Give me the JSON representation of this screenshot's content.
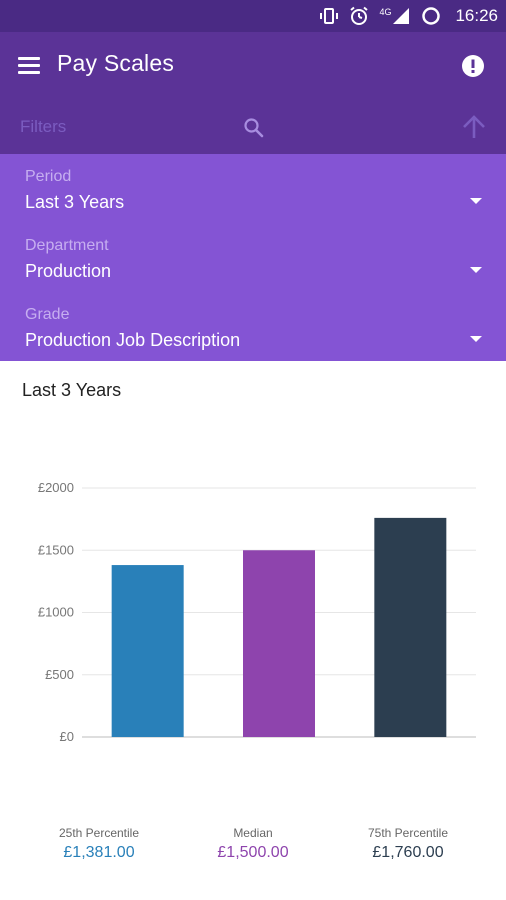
{
  "status_bar": {
    "time": "16:26",
    "network_label": "4G",
    "icons": [
      "vibrate-icon",
      "alarm-icon",
      "signal-icon",
      "battery-icon"
    ]
  },
  "app_bar": {
    "title": "Pay Scales",
    "icons": [
      "menu-icon",
      "alert-icon"
    ]
  },
  "filter_bar": {
    "placeholder": "Filters",
    "icons": [
      "search-icon",
      "arrow-up-icon"
    ]
  },
  "filters": [
    {
      "label": "Period",
      "value": "Last 3 Years"
    },
    {
      "label": "Department",
      "value": "Production"
    },
    {
      "label": "Grade",
      "value": "Production Job Description"
    }
  ],
  "colors": {
    "status_bar": "#4a2a84",
    "app_bar": "#5b3397",
    "filters_panel": "#8454d4",
    "bar_25th": "#2980b9",
    "bar_median": "#8e44ad",
    "bar_75th": "#2c3e50"
  },
  "chart_title": "Last 3 Years",
  "chart_data": {
    "type": "bar",
    "categories": [
      "25th Percentile",
      "Median",
      "75th Percentile"
    ],
    "values": [
      1381,
      1500,
      1760
    ],
    "value_labels": [
      "£1,381.00",
      "£1,500.00",
      "£1,760.00"
    ],
    "ylim": [
      0,
      2000
    ],
    "yticks": [
      0,
      500,
      1000,
      1500,
      2000
    ],
    "ytick_labels": [
      "£0",
      "£500",
      "£1000",
      "£1500",
      "£2000"
    ],
    "grid": true
  }
}
